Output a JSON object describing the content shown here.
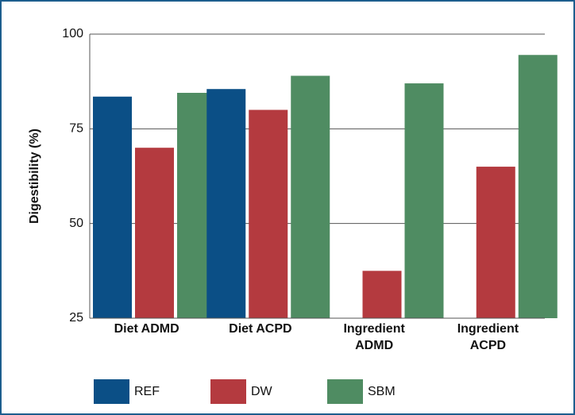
{
  "chart_data": {
    "type": "bar",
    "y_label": "Digestibility (%)",
    "categories": [
      "Diet ADMD",
      "Diet ACPD",
      "Ingredient ADMD",
      "Ingredient ACPD"
    ],
    "series": [
      {
        "name": "REF",
        "color": "#0b4f86",
        "values": [
          83.5,
          85.5,
          null,
          null
        ]
      },
      {
        "name": "DW",
        "color": "#b43a3f",
        "values": [
          70,
          80,
          37.5,
          65
        ]
      },
      {
        "name": "SBM",
        "color": "#4f8c62",
        "values": [
          84.5,
          89,
          87,
          94.5
        ]
      }
    ],
    "ylim": [
      25,
      100
    ],
    "yticks": [
      25,
      50,
      75,
      100
    ],
    "grid": true
  }
}
